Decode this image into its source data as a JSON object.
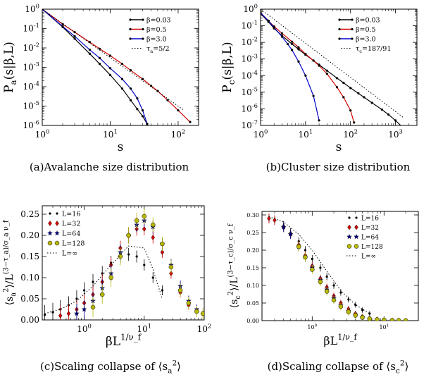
{
  "chart_data": [
    {
      "type": "line",
      "panel": "a",
      "caption": "(a)Avalanche size distribution",
      "xlabel": "s",
      "ylabel": "P_a(s|β,L)",
      "xscale": "log",
      "yscale": "log",
      "xlim": [
        1,
        200
      ],
      "ylim": [
        1e-06,
        1
      ],
      "xticks": [
        {
          "v": 1,
          "t": "10^0"
        },
        {
          "v": 10,
          "t": "10^1"
        },
        {
          "v": 100,
          "t": "10^2"
        }
      ],
      "yticks": [
        {
          "v": 1,
          "t": "10^0"
        },
        {
          "v": 0.1,
          "t": "10^-1"
        },
        {
          "v": 0.01,
          "t": "10^-2"
        },
        {
          "v": 0.001,
          "t": "10^-3"
        },
        {
          "v": 0.0001,
          "t": "10^-4"
        },
        {
          "v": 1e-05,
          "t": "10^-5"
        },
        {
          "v": 1e-06,
          "t": "10^-6"
        }
      ],
      "legend_position": "top-right",
      "series": [
        {
          "name": "β=0.03",
          "color": "#000000",
          "x": [
            1,
            2,
            3,
            5,
            7,
            10,
            15,
            20,
            25,
            30,
            35
          ],
          "y": [
            1,
            0.12,
            0.03,
            0.005,
            0.0015,
            0.0004,
            8e-05,
            2e-05,
            7e-06,
            3e-06,
            1.2e-06
          ]
        },
        {
          "name": "β=0.5",
          "color": "#d40000",
          "x": [
            1,
            2,
            3,
            5,
            7,
            10,
            15,
            20,
            30,
            40,
            50,
            70,
            100,
            150
          ],
          "y": [
            1,
            0.17,
            0.065,
            0.02,
            0.009,
            0.004,
            0.0015,
            0.0007,
            0.00025,
            0.00011,
            6e-05,
            2e-05,
            6e-06,
            1.5e-06
          ]
        },
        {
          "name": "β=3.0",
          "color": "#0000cc",
          "x": [
            1,
            2,
            3,
            5,
            7,
            10,
            15,
            20,
            25,
            30,
            35
          ],
          "y": [
            1,
            0.13,
            0.04,
            0.008,
            0.003,
            0.0009,
            0.00025,
            8e-05,
            2.5e-05,
            6e-06,
            1.2e-06
          ]
        },
        {
          "name": "τ_a=5/2",
          "color": "#000000",
          "style": "dotted",
          "x": [
            1,
            120
          ],
          "y": [
            1,
            6.3e-06
          ]
        }
      ]
    },
    {
      "type": "line",
      "panel": "b",
      "caption": "(b)Cluster size distribution",
      "xlabel": "s",
      "ylabel": "P_c(s|β,L)",
      "xscale": "log",
      "yscale": "log",
      "xlim": [
        1,
        3000
      ],
      "ylim": [
        1e-07,
        1
      ],
      "xticks": [
        {
          "v": 1,
          "t": "10^0"
        },
        {
          "v": 10,
          "t": "10^1"
        },
        {
          "v": 100,
          "t": "10^2"
        },
        {
          "v": 1000,
          "t": "10^3"
        }
      ],
      "yticks": [
        {
          "v": 1,
          "t": "10^0"
        },
        {
          "v": 0.1,
          "t": "10^-1"
        },
        {
          "v": 0.01,
          "t": "10^-2"
        },
        {
          "v": 0.001,
          "t": "10^-3"
        },
        {
          "v": 0.0001,
          "t": "10^-4"
        },
        {
          "v": 1e-05,
          "t": "10^-5"
        },
        {
          "v": 1e-06,
          "t": "10^-6"
        },
        {
          "v": 1e-07,
          "t": "10^-7"
        }
      ],
      "legend_position": "top-right",
      "series": [
        {
          "name": "β=0.03",
          "color": "#000000",
          "x": [
            1,
            1.5,
            2,
            3,
            5,
            7,
            10,
            15,
            20,
            30,
            50,
            70,
            100,
            150,
            200,
            300,
            500,
            700,
            1000,
            1500
          ],
          "y": [
            0.55,
            0.17,
            0.07,
            0.025,
            0.008,
            0.0038,
            0.0018,
            0.0008,
            0.00045,
            0.0002,
            7e-05,
            3.7e-05,
            1.8e-05,
            8.5e-06,
            5e-06,
            2.3e-06,
            9e-07,
            4.5e-07,
            2e-07,
            7e-08
          ]
        },
        {
          "name": "β=0.5",
          "color": "#d40000",
          "x": [
            1,
            1.5,
            2,
            3,
            5,
            7,
            10,
            15,
            20,
            30,
            50,
            70,
            100,
            120
          ],
          "y": [
            0.6,
            0.2,
            0.09,
            0.035,
            0.011,
            0.005,
            0.002,
            0.0008,
            0.0004,
            0.00013,
            2e-05,
            5e-06,
            8e-07,
            1.5e-07
          ]
        },
        {
          "name": "β=3.0",
          "color": "#0000cc",
          "x": [
            1,
            1.5,
            2,
            3,
            4,
            5,
            7,
            10,
            15,
            20
          ],
          "y": [
            0.6,
            0.2,
            0.08,
            0.022,
            0.008,
            0.0035,
            0.0007,
            0.0001,
            6e-06,
            2e-07
          ]
        },
        {
          "name": "τ_c=187/91",
          "color": "#000000",
          "style": "dotted",
          "x": [
            1,
            1500
          ],
          "y": [
            1,
            3e-07
          ]
        }
      ]
    },
    {
      "type": "scatter",
      "panel": "c",
      "caption": "(c)Scaling collapse of ⟨s_a^2⟩",
      "xlabel": "βL^{1/ν_f}",
      "ylabel": "⟨s_a^2⟩/L^{(3−τ_a)/σ_a ν_f}",
      "xscale": "log",
      "yscale": "linear",
      "xlim": [
        0.2,
        100
      ],
      "ylim": [
        0,
        0.27
      ],
      "xticks": [
        {
          "v": 1,
          "t": "10^0"
        },
        {
          "v": 10,
          "t": "10^1"
        },
        {
          "v": 100,
          "t": "10^2"
        }
      ],
      "yticks": [
        {
          "v": 0,
          "t": "0.00"
        },
        {
          "v": 0.05,
          "t": "0.05"
        },
        {
          "v": 0.1,
          "t": "0.10"
        },
        {
          "v": 0.15,
          "t": "0.15"
        },
        {
          "v": 0.2,
          "t": "0.20"
        },
        {
          "v": 0.25,
          "t": "0.25"
        }
      ],
      "legend_position": "top-left",
      "series": [
        {
          "name": "L=16",
          "color": "#000000",
          "marker": "dot",
          "x": [
            0.22,
            0.3,
            0.4,
            0.55,
            0.75,
            1.0,
            1.4,
            2.0,
            2.8,
            4.0,
            5.5,
            7.5,
            10,
            14,
            20
          ],
          "y": [
            0.012,
            0.018,
            0.025,
            0.035,
            0.05,
            0.07,
            0.09,
            0.11,
            0.135,
            0.15,
            0.155,
            0.15,
            0.13,
            0.1,
            0.07
          ]
        },
        {
          "name": "L=32",
          "color": "#d40000",
          "marker": "diamond",
          "x": [
            0.4,
            0.55,
            0.75,
            1.0,
            1.4,
            2.0,
            2.8,
            4.0,
            5.5,
            7.5,
            10,
            14,
            20,
            28,
            40,
            55
          ],
          "y": [
            0.01,
            0.015,
            0.025,
            0.04,
            0.06,
            0.09,
            0.13,
            0.17,
            0.2,
            0.215,
            0.215,
            0.195,
            0.16,
            0.11,
            0.065,
            0.035
          ]
        },
        {
          "name": "L=64",
          "color": "#000080",
          "marker": "star",
          "x": [
            0.75,
            1.0,
            1.4,
            2.0,
            2.8,
            4.0,
            5.5,
            7.5,
            10,
            14,
            20,
            28,
            40,
            55,
            75
          ],
          "y": [
            0.015,
            0.025,
            0.045,
            0.075,
            0.11,
            0.16,
            0.2,
            0.225,
            0.235,
            0.22,
            0.18,
            0.13,
            0.08,
            0.045,
            0.025
          ]
        },
        {
          "name": "L=128",
          "color": "#b8b800",
          "marker": "circle",
          "x": [
            1.4,
            2.0,
            2.8,
            4.0,
            5.5,
            7.5,
            10,
            14,
            20,
            28,
            40,
            55,
            75,
            95
          ],
          "y": [
            0.03,
            0.06,
            0.1,
            0.15,
            0.2,
            0.235,
            0.245,
            0.225,
            0.18,
            0.125,
            0.07,
            0.04,
            0.02,
            0.015
          ]
        },
        {
          "name": "L=∞",
          "color": "#000000",
          "style": "dotted",
          "x": [
            0.22,
            0.4,
            0.75,
            1.4,
            2.8,
            5.5,
            10,
            14,
            20
          ],
          "y": [
            0.015,
            0.025,
            0.045,
            0.08,
            0.13,
            0.175,
            0.17,
            0.12,
            0.05
          ]
        }
      ]
    },
    {
      "type": "scatter",
      "panel": "d",
      "caption": "(d)Scaling collapse of ⟨s_c^2⟩",
      "xlabel": "βL^{1/ν_f}",
      "ylabel": "⟨s_c^2⟩/L^{(3−τ_c)/σ_c ν_f}",
      "xscale": "log",
      "yscale": "linear",
      "xlim": [
        0.2,
        30
      ],
      "ylim": [
        0,
        0.31
      ],
      "xticks": [
        {
          "v": 1,
          "t": "10^0"
        },
        {
          "v": 10,
          "t": "10^1"
        }
      ],
      "yticks": [
        {
          "v": 0,
          "t": "0.00"
        },
        {
          "v": 0.05,
          "t": "0.05"
        },
        {
          "v": 0.1,
          "t": "0.10"
        },
        {
          "v": 0.15,
          "t": "0.15"
        },
        {
          "v": 0.2,
          "t": "0.20"
        },
        {
          "v": 0.25,
          "t": "0.25"
        },
        {
          "v": 0.3,
          "t": "0.30"
        }
      ],
      "legend_position": "top-right",
      "series": [
        {
          "name": "L=16",
          "color": "#000000",
          "marker": "dot",
          "x": [
            0.25,
            0.3,
            0.4,
            0.5,
            0.65,
            0.8,
            1.0,
            1.3,
            1.6,
            2.0,
            2.5,
            3.2,
            4.0,
            5.0,
            6.3
          ],
          "y": [
            0.29,
            0.285,
            0.27,
            0.25,
            0.225,
            0.2,
            0.175,
            0.15,
            0.125,
            0.1,
            0.08,
            0.06,
            0.045,
            0.03,
            0.02
          ]
        },
        {
          "name": "L=32",
          "color": "#d40000",
          "marker": "diamond",
          "x": [
            0.25,
            0.3,
            0.4,
            0.5,
            0.65,
            0.8,
            1.0,
            1.3,
            1.6,
            2.0,
            2.5,
            3.2,
            4.0,
            5.0,
            6.3,
            8,
            10
          ],
          "y": [
            0.29,
            0.285,
            0.265,
            0.245,
            0.215,
            0.185,
            0.155,
            0.12,
            0.095,
            0.07,
            0.05,
            0.033,
            0.02,
            0.012,
            0.007,
            0.004,
            0.002
          ]
        },
        {
          "name": "L=64",
          "color": "#000080",
          "marker": "star",
          "x": [
            0.4,
            0.5,
            0.65,
            0.8,
            1.0,
            1.3,
            1.6,
            2.0,
            2.5,
            3.2,
            4.0,
            5.0,
            6.3,
            8,
            10,
            13
          ],
          "y": [
            0.265,
            0.245,
            0.21,
            0.18,
            0.15,
            0.115,
            0.088,
            0.063,
            0.043,
            0.027,
            0.016,
            0.009,
            0.005,
            0.003,
            0.002,
            0.001
          ]
        },
        {
          "name": "L=128",
          "color": "#b8b800",
          "marker": "circle",
          "x": [
            0.65,
            0.8,
            1.0,
            1.3,
            1.6,
            2.0,
            2.5,
            3.2,
            4.0,
            5.0,
            6.3,
            8,
            10,
            13,
            16,
            20
          ],
          "y": [
            0.21,
            0.18,
            0.145,
            0.11,
            0.083,
            0.058,
            0.04,
            0.025,
            0.015,
            0.009,
            0.005,
            0.003,
            0.002,
            0.001,
            0.0008,
            0.0005
          ]
        },
        {
          "name": "L=∞",
          "color": "#000000",
          "style": "dotted",
          "x": [
            0.25,
            0.4,
            0.65,
            1.0,
            1.6,
            2.5,
            4.0,
            6.3
          ],
          "y": [
            0.295,
            0.28,
            0.245,
            0.2,
            0.14,
            0.085,
            0.045,
            0.02
          ]
        }
      ]
    }
  ]
}
